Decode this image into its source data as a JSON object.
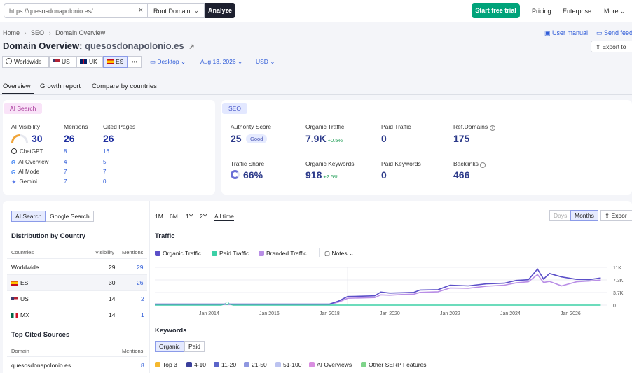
{
  "header": {
    "url_value": "https://quesosdonapolonio.es/",
    "scope": "Root Domain",
    "analyze": "Analyze",
    "start_trial": "Start free trial",
    "nav": [
      "Pricing",
      "Enterprise",
      "More"
    ]
  },
  "breadcrumb": [
    "Home",
    "SEO",
    "Domain Overview"
  ],
  "help": {
    "user_manual": "User manual",
    "send_feedback": "Send feed"
  },
  "page": {
    "title_prefix": "Domain Overview:",
    "domain": "quesosdonapolonio.es",
    "export": "Export to"
  },
  "databases": [
    {
      "label": "Worldwide"
    },
    {
      "label": "US"
    },
    {
      "label": "UK"
    },
    {
      "label": "ES",
      "active": true
    },
    {
      "label": "•••"
    }
  ],
  "filters": {
    "device": "Desktop",
    "date": "Aug 13, 2026",
    "currency": "USD"
  },
  "tabs": [
    "Overview",
    "Growth report",
    "Compare by countries"
  ],
  "ai_search": {
    "tag": "AI Search",
    "visibility_label": "AI Visibility",
    "visibility": "30",
    "mentions_label": "Mentions",
    "mentions": "26",
    "cited_label": "Cited Pages",
    "cited": "26",
    "rows": [
      {
        "name": "ChatGPT",
        "mentions": "8",
        "cited": "16"
      },
      {
        "name": "AI Overview",
        "mentions": "4",
        "cited": "5"
      },
      {
        "name": "AI Mode",
        "mentions": "7",
        "cited": "7"
      },
      {
        "name": "Gemini",
        "mentions": "7",
        "cited": "0"
      }
    ]
  },
  "seo": {
    "tag": "SEO",
    "authority_label": "Authority Score",
    "authority": "25",
    "authority_badge": "Good",
    "organic_traffic_label": "Organic Traffic",
    "organic_traffic": "7.9K",
    "organic_traffic_delta": "+0.5%",
    "paid_traffic_label": "Paid Traffic",
    "paid_traffic": "0",
    "ref_domains_label": "Ref.Domains",
    "ref_domains": "175",
    "traffic_share_label": "Traffic Share",
    "traffic_share": "66%",
    "organic_kw_label": "Organic Keywords",
    "organic_kw": "918",
    "organic_kw_delta": "+2.5%",
    "paid_kw_label": "Paid Keywords",
    "paid_kw": "0",
    "backlinks_label": "Backlinks",
    "backlinks": "466"
  },
  "left_panel": {
    "toggle": [
      "AI Search",
      "Google Search"
    ],
    "dist_title": "Distribution by Country",
    "col_countries": "Countries",
    "col_visibility": "Visibility",
    "col_mentions": "Mentions",
    "countries": [
      {
        "name": "Worldwide",
        "visibility": "29",
        "mentions": "29"
      },
      {
        "name": "ES",
        "visibility": "30",
        "mentions": "26"
      },
      {
        "name": "US",
        "visibility": "14",
        "mentions": "2"
      },
      {
        "name": "MX",
        "visibility": "14",
        "mentions": "1"
      }
    ],
    "sources_title": "Top Cited Sources",
    "col_domain": "Domain",
    "sources": [
      {
        "domain": "quesosdonapolonio.es",
        "mentions": "8"
      }
    ]
  },
  "traffic": {
    "periods": [
      "1M",
      "6M",
      "1Y",
      "2Y",
      "All time"
    ],
    "granularity": [
      "Days",
      "Months"
    ],
    "export": "Expor",
    "title": "Traffic",
    "legend": [
      "Organic Traffic",
      "Paid Traffic",
      "Branded Traffic"
    ],
    "notes": "Notes",
    "colors": {
      "organic": "#5b4fc8",
      "paid": "#3cd0a6",
      "branded": "#b98ee6"
    }
  },
  "chart_data": {
    "type": "line",
    "title": "Traffic",
    "x_ticks": [
      "Jan 2014",
      "Jan 2016",
      "Jan 2018",
      "Jan 2020",
      "Jan 2022",
      "Jan 2024",
      "Jan 2026"
    ],
    "y_ticks": [
      "11K",
      "7.3K",
      "3.7K",
      "0"
    ],
    "ylim": [
      0,
      11000
    ],
    "xlim": [
      2012.2,
      2027.2
    ],
    "series": [
      {
        "name": "Organic Traffic",
        "color": "#5b4fc8",
        "x": [
          2012.2,
          2018.0,
          2018.3,
          2018.6,
          2019.5,
          2019.7,
          2020.0,
          2020.4,
          2020.8,
          2021.0,
          2021.6,
          2022.0,
          2022.6,
          2023.2,
          2023.8,
          2024.2,
          2024.6,
          2024.9,
          2025.1,
          2025.3,
          2025.7,
          2026.2,
          2026.6,
          2027.0
        ],
        "values": [
          300,
          300,
          1200,
          2500,
          2700,
          3800,
          3500,
          3600,
          3700,
          4400,
          4500,
          5800,
          5600,
          6200,
          6400,
          7200,
          7400,
          10500,
          7600,
          9200,
          8200,
          7500,
          7400,
          7900
        ]
      },
      {
        "name": "Paid Traffic",
        "color": "#3cd0a6",
        "x": [
          2012.2,
          2014.4,
          2014.6,
          2014.8,
          2018.0,
          2027.0
        ],
        "values": [
          0,
          0,
          500,
          0,
          0,
          0
        ]
      },
      {
        "name": "Branded Traffic",
        "color": "#b98ee6",
        "x": [
          2012.2,
          2018.0,
          2018.3,
          2018.6,
          2019.5,
          2019.7,
          2020.0,
          2020.4,
          2020.8,
          2021.0,
          2021.6,
          2022.0,
          2022.6,
          2023.2,
          2023.8,
          2024.2,
          2024.6,
          2024.9,
          2025.1,
          2025.3,
          2025.7,
          2026.2,
          2026.6,
          2027.0
        ],
        "values": [
          200,
          200,
          900,
          2000,
          2200,
          3000,
          2900,
          3100,
          3200,
          3700,
          3900,
          5000,
          4900,
          5500,
          5800,
          6500,
          6800,
          8900,
          6600,
          6900,
          5600,
          6800,
          7000,
          7300
        ]
      }
    ]
  },
  "keywords": {
    "title": "Keywords",
    "toggle": [
      "Organic",
      "Paid"
    ],
    "legend": [
      "Top 3",
      "4-10",
      "11-20",
      "21-50",
      "51-100",
      "AI Overviews",
      "Other SERP Features"
    ],
    "colors": [
      "#f5b82e",
      "#3a3f9b",
      "#5b64c9",
      "#8f97e0",
      "#bcc3f0",
      "#d98ee0",
      "#7fd48a"
    ]
  }
}
